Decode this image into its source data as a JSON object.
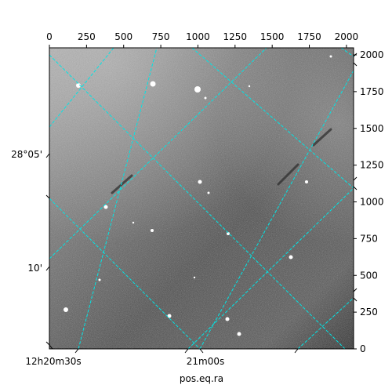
{
  "chart_data": {
    "type": "image",
    "axes": {
      "top": {
        "ticks": [
          0,
          250,
          500,
          750,
          1000,
          1250,
          1500,
          1750,
          2000
        ],
        "labels": [
          "0",
          "250",
          "500",
          "750",
          "1000",
          "1250",
          "1500",
          "1750",
          "2000"
        ],
        "xlim": [
          0,
          2048
        ]
      },
      "right": {
        "ticks": [
          0,
          250,
          500,
          750,
          1000,
          1250,
          1500,
          1750,
          2000
        ],
        "labels": [
          "0",
          "250",
          "500",
          "750",
          "1000",
          "1250",
          "1500",
          "1750",
          "2000"
        ],
        "ylim": [
          0,
          2048
        ]
      },
      "left_labels": [
        "28°05'",
        "10'"
      ],
      "bottom_labels": [
        "12h20m30s",
        "21m00s"
      ],
      "xlabel": "pos.eq.ra"
    },
    "grid": true,
    "grid_color": "#00e5e5",
    "colors": {
      "frame": "#000000",
      "sky_light": "#9a9a9a",
      "sky_dark": "#3c3c3c"
    }
  }
}
